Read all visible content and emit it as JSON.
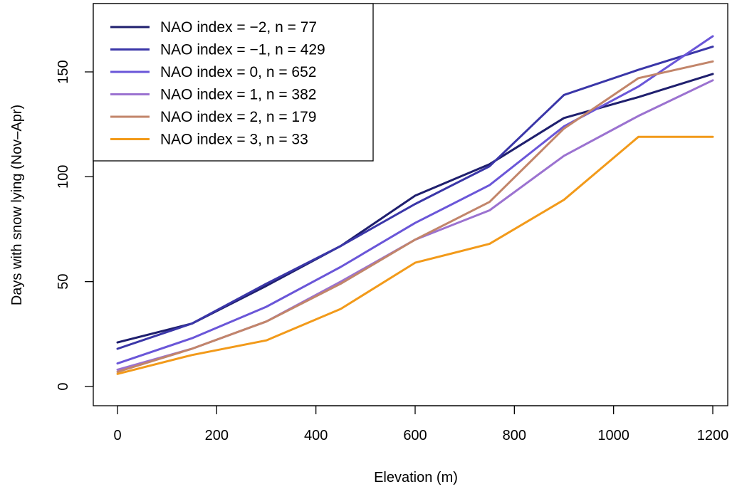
{
  "chart_data": {
    "type": "line",
    "xlabel": "Elevation (m)",
    "ylabel": "Days with snow lying (Nov–Apr)",
    "xlim": [
      0,
      1200
    ],
    "ylim": [
      0,
      170
    ],
    "xticks": [
      0,
      200,
      400,
      600,
      800,
      1000,
      1200
    ],
    "yticks": [
      0,
      50,
      100,
      150
    ],
    "grid": false,
    "legend_position": "top-left",
    "x": [
      0,
      150,
      300,
      450,
      600,
      750,
      900,
      1050,
      1200
    ],
    "series": [
      {
        "name": "NAO index = −2, n = 77",
        "color": "#1f1f6e",
        "values": [
          21,
          30,
          48,
          67,
          91,
          106,
          128,
          138,
          149
        ]
      },
      {
        "name": "NAO index = −1, n = 429",
        "color": "#3a36a8",
        "values": [
          18,
          30,
          49,
          67,
          87,
          105,
          139,
          151,
          162
        ]
      },
      {
        "name": "NAO index = 0, n = 652",
        "color": "#6a56d8",
        "values": [
          11,
          23,
          38,
          57,
          78,
          96,
          124,
          143,
          167
        ]
      },
      {
        "name": "NAO index = 1, n = 382",
        "color": "#9b72d0",
        "values": [
          8,
          18,
          31,
          50,
          70,
          84,
          110,
          129,
          146
        ]
      },
      {
        "name": "NAO index = 2, n = 179",
        "color": "#c2856a",
        "values": [
          7,
          18,
          31,
          49,
          70,
          88,
          123,
          147,
          155
        ]
      },
      {
        "name": "NAO index = 3, n = 33",
        "color": "#f29a1a",
        "values": [
          6,
          15,
          22,
          37,
          59,
          68,
          89,
          119,
          119
        ]
      }
    ]
  }
}
